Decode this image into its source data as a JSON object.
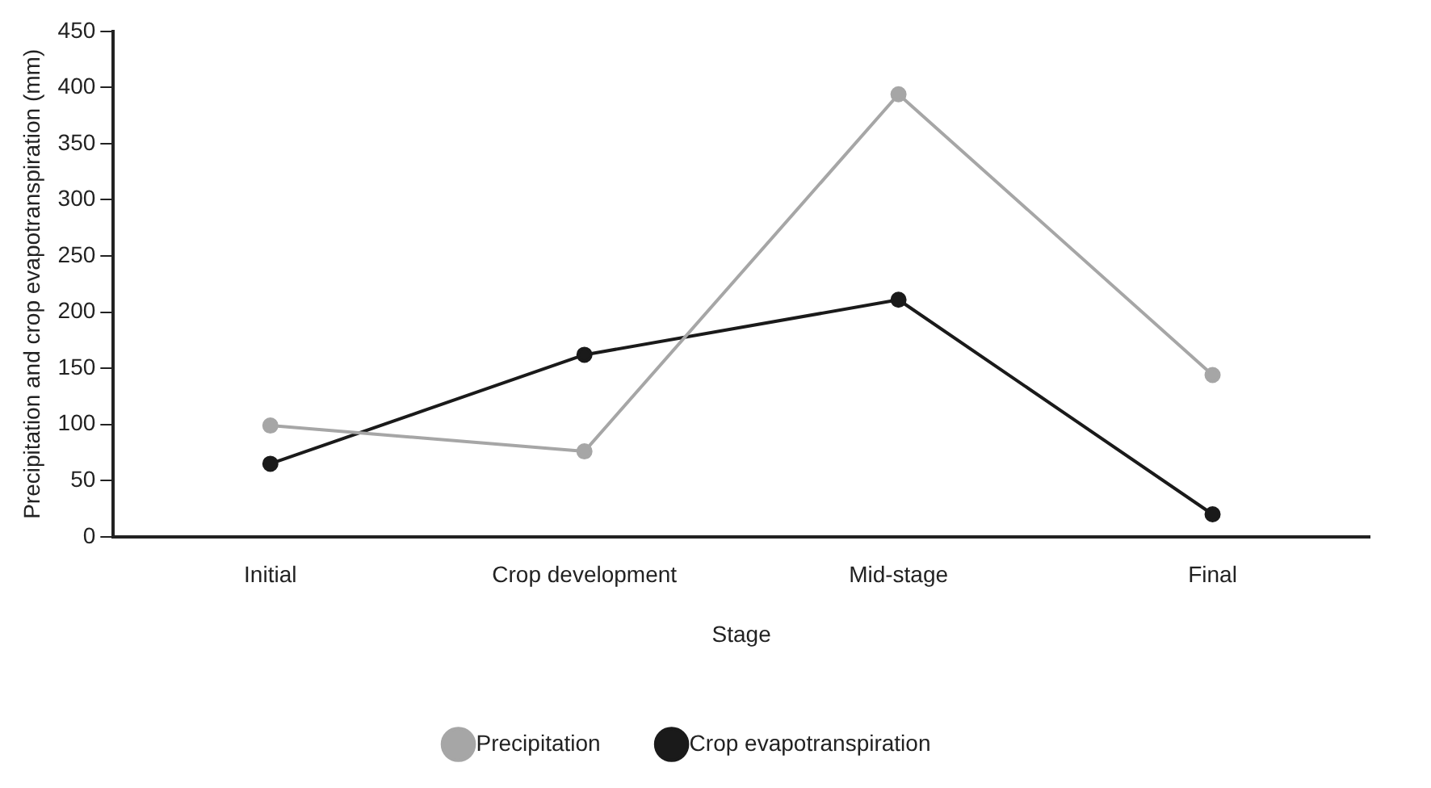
{
  "chart_data": {
    "type": "line",
    "xlabel": "Stage",
    "ylabel": "Precipitation and crop evapotranspiration (mm)",
    "categories": [
      "Initial",
      "Crop development",
      "Mid-stage",
      "Final"
    ],
    "series": [
      {
        "name": "Precipitation",
        "color": "#a6a6a6",
        "values": [
          99,
          76,
          394,
          144
        ]
      },
      {
        "name": "Crop evapotranspiration",
        "color": "#1a1a1a",
        "values": [
          65,
          162,
          211,
          20
        ]
      }
    ],
    "ylim": [
      0,
      450
    ],
    "yticks": [
      0,
      50,
      100,
      150,
      200,
      250,
      300,
      350,
      400,
      450
    ],
    "grid": false,
    "legend": "bottom",
    "marker": "circle",
    "line_style": "solid"
  }
}
